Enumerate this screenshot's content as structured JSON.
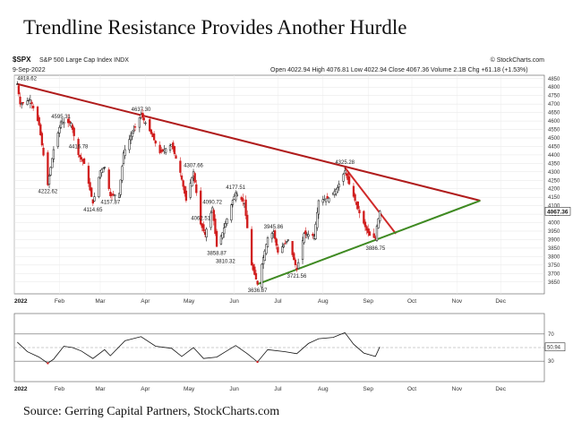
{
  "title": "Trendline Resistance Provides Another Hurdle",
  "source": "Source: Gerring Capital Partners, StockCharts.com",
  "header": {
    "symbol": "$SPX",
    "index_name": "S&P 500 Large Cap Index INDX",
    "date": "9-Sep-2022",
    "stats": "Open 4022.94 High 4076.81 Low 4022.94 Close 4067.36 Volume 2.1B Chg +61.18 (+1.53%)",
    "watermark": "© StockCharts.com"
  },
  "chart_data": {
    "type": "candlestick",
    "title": "",
    "xlabel": "",
    "ylabel": "",
    "ylim": [
      3580,
      4870
    ],
    "y_ticks": [
      3650,
      3700,
      3750,
      3800,
      3850,
      3900,
      3950,
      4000,
      4050,
      4100,
      4150,
      4200,
      4250,
      4300,
      4350,
      4400,
      4450,
      4500,
      4550,
      4600,
      4650,
      4700,
      4750,
      4800,
      4850
    ],
    "x_labels": [
      "2022",
      "Feb",
      "Mar",
      "Apr",
      "May",
      "Jun",
      "Jul",
      "Aug",
      "Sep",
      "Oct",
      "Nov",
      "Dec"
    ],
    "x_bold": [
      "2022"
    ],
    "last_price_label": "4067.36",
    "prices": [
      {
        "date": "2022-01-03",
        "close": 4818.62
      },
      {
        "date": "2022-01-05",
        "close": 4700
      },
      {
        "date": "2022-01-12",
        "close": 4726
      },
      {
        "date": "2022-01-18",
        "close": 4577
      },
      {
        "date": "2022-01-21",
        "close": 4398
      },
      {
        "date": "2022-01-24",
        "close": 4222.62
      },
      {
        "date": "2022-01-28",
        "close": 4431
      },
      {
        "date": "2022-02-02",
        "close": 4595.31
      },
      {
        "date": "2022-02-09",
        "close": 4587
      },
      {
        "date": "2022-02-14",
        "close": 4401
      },
      {
        "date": "2022-02-18",
        "close": 4348
      },
      {
        "date": "2022-02-24",
        "close": 4114.65
      },
      {
        "date": "2022-03-01",
        "close": 4306
      },
      {
        "date": "2022-03-04",
        "close": 4328
      },
      {
        "date": "2022-03-08",
        "close": 4157.87
      },
      {
        "date": "2022-03-14",
        "close": 4173
      },
      {
        "date": "2022-03-17",
        "close": 4411
      },
      {
        "date": "2022-03-22",
        "close": 4511
      },
      {
        "date": "2022-03-29",
        "close": 4637.3
      },
      {
        "date": "2022-04-05",
        "close": 4525
      },
      {
        "date": "2022-04-11",
        "close": 4412
      },
      {
        "date": "2022-04-19",
        "close": 4462
      },
      {
        "date": "2022-04-25",
        "close": 4296
      },
      {
        "date": "2022-04-29",
        "close": 4131
      },
      {
        "date": "2022-05-04",
        "close": 4300
      },
      {
        "date": "2022-05-09",
        "close": 3991
      },
      {
        "date": "2022-05-12",
        "close": 3930
      },
      {
        "date": "2022-05-17",
        "close": 4088
      },
      {
        "date": "2022-05-20",
        "close": 3858.87
      },
      {
        "date": "2022-05-24",
        "close": 3941
      },
      {
        "date": "2022-05-31",
        "close": 4132
      },
      {
        "date": "2022-06-02",
        "close": 4177
      },
      {
        "date": "2022-06-08",
        "close": 4115
      },
      {
        "date": "2022-06-13",
        "close": 3749
      },
      {
        "date": "2022-06-16",
        "close": 3666
      },
      {
        "date": "2022-06-17",
        "close": 3636.87
      },
      {
        "date": "2022-06-24",
        "close": 3911
      },
      {
        "date": "2022-06-28",
        "close": 3945.86
      },
      {
        "date": "2022-07-01",
        "close": 3825
      },
      {
        "date": "2022-07-08",
        "close": 3899
      },
      {
        "date": "2022-07-14",
        "close": 3721.56
      },
      {
        "date": "2022-07-19",
        "close": 3936
      },
      {
        "date": "2022-07-26",
        "close": 3921
      },
      {
        "date": "2022-07-29",
        "close": 4130
      },
      {
        "date": "2022-08-05",
        "close": 4145
      },
      {
        "date": "2022-08-11",
        "close": 4207
      },
      {
        "date": "2022-08-16",
        "close": 4305.2
      },
      {
        "date": "2022-08-19",
        "close": 4228
      },
      {
        "date": "2022-08-26",
        "close": 4057
      },
      {
        "date": "2022-08-31",
        "close": 3955
      },
      {
        "date": "2022-09-02",
        "close": 3924
      },
      {
        "date": "2022-09-06",
        "close": 3908
      },
      {
        "date": "2022-09-07",
        "close": 3979
      },
      {
        "date": "2022-09-09",
        "close": 4067.36
      }
    ],
    "annotations": [
      {
        "text": "4818.62",
        "date": "2022-01-03",
        "value": 4818.62
      },
      {
        "text": "4595.31",
        "date": "2022-02-02",
        "value": 4595.31
      },
      {
        "text": "4222.62",
        "date": "2022-01-24",
        "value": 4222.62
      },
      {
        "text": "4416.78",
        "date": "2022-02-14",
        "value": 4416.78
      },
      {
        "text": "4114.65",
        "date": "2022-02-24",
        "value": 4114.65
      },
      {
        "text": "4157.87",
        "date": "2022-03-08",
        "value": 4157.87
      },
      {
        "text": "4637.30",
        "date": "2022-03-29",
        "value": 4637.3
      },
      {
        "text": "4307.66",
        "date": "2022-05-04",
        "value": 4307.66
      },
      {
        "text": "4062.51",
        "date": "2022-05-09",
        "value": 4062.51
      },
      {
        "text": "4090.72",
        "date": "2022-05-17",
        "value": 4090.72
      },
      {
        "text": "4177.51",
        "date": "2022-06-02",
        "value": 4177.51
      },
      {
        "text": "3858.87",
        "date": "2022-05-20",
        "value": 3858.87
      },
      {
        "text": "3810.32",
        "date": "2022-05-26",
        "value": 3810.32
      },
      {
        "text": "3945.86",
        "date": "2022-06-28",
        "value": 3945.86
      },
      {
        "text": "3636.87",
        "date": "2022-06-17",
        "value": 3636.87
      },
      {
        "text": "3721.56",
        "date": "2022-07-14",
        "value": 3721.56
      },
      {
        "text": "4325.28",
        "date": "2022-08-16",
        "value": 4325.28
      },
      {
        "text": "3886.75",
        "date": "2022-09-06",
        "value": 3886.75
      }
    ],
    "trendlines": [
      {
        "color": "#b01c1c",
        "from": {
          "date": "2022-01-03",
          "value": 4818.62
        },
        "to": {
          "date": "2022-11-17",
          "value": 4130
        }
      },
      {
        "color": "#d02a2a",
        "from": {
          "date": "2022-08-16",
          "value": 4325.28
        },
        "to": {
          "date": "2022-09-20",
          "value": 3935
        }
      },
      {
        "color": "#3f8a22",
        "from": {
          "date": "2022-06-17",
          "value": 3636.87
        },
        "to": {
          "date": "2022-11-17",
          "value": 4130
        }
      }
    ],
    "indicator": {
      "ylim": [
        0,
        100
      ],
      "levels": [
        70,
        50,
        30
      ],
      "tick_labels": [
        "70",
        "50",
        "30"
      ],
      "last_value_label": "50.94",
      "values": [
        {
          "date": "2022-01-03",
          "value": 58
        },
        {
          "date": "2022-01-10",
          "value": 44
        },
        {
          "date": "2022-01-18",
          "value": 36
        },
        {
          "date": "2022-01-24",
          "value": 27
        },
        {
          "date": "2022-01-28",
          "value": 33
        },
        {
          "date": "2022-02-04",
          "value": 52
        },
        {
          "date": "2022-02-10",
          "value": 50
        },
        {
          "date": "2022-02-16",
          "value": 45
        },
        {
          "date": "2022-02-24",
          "value": 34
        },
        {
          "date": "2022-03-04",
          "value": 47
        },
        {
          "date": "2022-03-08",
          "value": 38
        },
        {
          "date": "2022-03-18",
          "value": 60
        },
        {
          "date": "2022-03-29",
          "value": 66
        },
        {
          "date": "2022-04-08",
          "value": 52
        },
        {
          "date": "2022-04-19",
          "value": 49
        },
        {
          "date": "2022-04-26",
          "value": 37
        },
        {
          "date": "2022-05-04",
          "value": 50
        },
        {
          "date": "2022-05-11",
          "value": 34
        },
        {
          "date": "2022-05-20",
          "value": 36
        },
        {
          "date": "2022-06-02",
          "value": 53
        },
        {
          "date": "2022-06-10",
          "value": 41
        },
        {
          "date": "2022-06-17",
          "value": 29
        },
        {
          "date": "2022-06-24",
          "value": 47
        },
        {
          "date": "2022-07-06",
          "value": 44
        },
        {
          "date": "2022-07-14",
          "value": 41
        },
        {
          "date": "2022-07-22",
          "value": 56
        },
        {
          "date": "2022-07-29",
          "value": 63
        },
        {
          "date": "2022-08-08",
          "value": 65
        },
        {
          "date": "2022-08-16",
          "value": 72
        },
        {
          "date": "2022-08-22",
          "value": 55
        },
        {
          "date": "2022-08-29",
          "value": 42
        },
        {
          "date": "2022-09-06",
          "value": 37
        },
        {
          "date": "2022-09-09",
          "value": 51
        }
      ]
    }
  }
}
